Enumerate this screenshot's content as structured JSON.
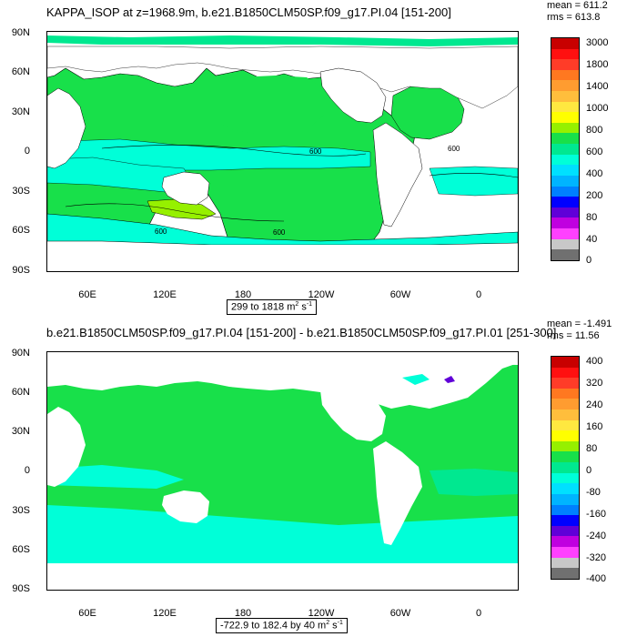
{
  "panels": [
    {
      "title": "KAPPA_ISOP at z=1968.9m, b.e21.B1850CLM50SP.f09_g17.PI.04 [151-200]",
      "mean": "mean = 611.2",
      "rms": "rms = 613.8",
      "range_text": "299 to 1818",
      "units_base": "m",
      "units_exp": "2",
      "units_tail": "s",
      "units_tail_exp": "-1",
      "lat_labels": [
        "90N",
        "60N",
        "30N",
        "0",
        "30S",
        "60S",
        "90S"
      ],
      "lon_labels": [
        "60E",
        "120E",
        "180",
        "120W",
        "60W",
        "0"
      ],
      "colorbar_labels": [
        "3000",
        "1800",
        "1400",
        "1000",
        "800",
        "600",
        "400",
        "200",
        "80",
        "40",
        "0"
      ],
      "colorbar_colors": [
        "#c80000",
        "#ff1010",
        "#ff3c28",
        "#ff7820",
        "#ff9c30",
        "#ffbe3c",
        "#ffe840",
        "#ffff00",
        "#96f000",
        "#18e04a",
        "#00e890",
        "#00ffd8",
        "#00e0ff",
        "#00b4ff",
        "#0080ff",
        "#0000ff",
        "#6000d8",
        "#c000e0",
        "#ff40ff",
        "#c8c8c8",
        "#707070"
      ],
      "contour_labels": [
        "600",
        "600",
        "600",
        "600"
      ]
    },
    {
      "title": "b.e21.B1850CLM50SP.f09_g17.PI.04 [151-200] - b.e21.B1850CLM50SP.f09_g17.PI.01 [251-300]",
      "mean": "mean = -1.491",
      "rms": "rms = 11.56",
      "range_text": "-722.9 to 182.4 by 40",
      "units_base": "m",
      "units_exp": "2",
      "units_tail": "s",
      "units_tail_exp": "-1",
      "lat_labels": [
        "90N",
        "60N",
        "30N",
        "0",
        "30S",
        "60S",
        "90S"
      ],
      "lon_labels": [
        "60E",
        "120E",
        "180",
        "120W",
        "60W",
        "0"
      ],
      "colorbar_labels": [
        "400",
        "320",
        "240",
        "160",
        "80",
        "0",
        "-80",
        "-160",
        "-240",
        "-320",
        "-400"
      ],
      "colorbar_colors": [
        "#c80000",
        "#ff1010",
        "#ff3c28",
        "#ff7820",
        "#ff9c30",
        "#ffbe3c",
        "#ffe840",
        "#ffff00",
        "#96f000",
        "#18e04a",
        "#00e890",
        "#00ffd8",
        "#00e0ff",
        "#00b4ff",
        "#0080ff",
        "#0000ff",
        "#6000d8",
        "#c000e0",
        "#ff40ff",
        "#c8c8c8",
        "#707070"
      ]
    }
  ]
}
